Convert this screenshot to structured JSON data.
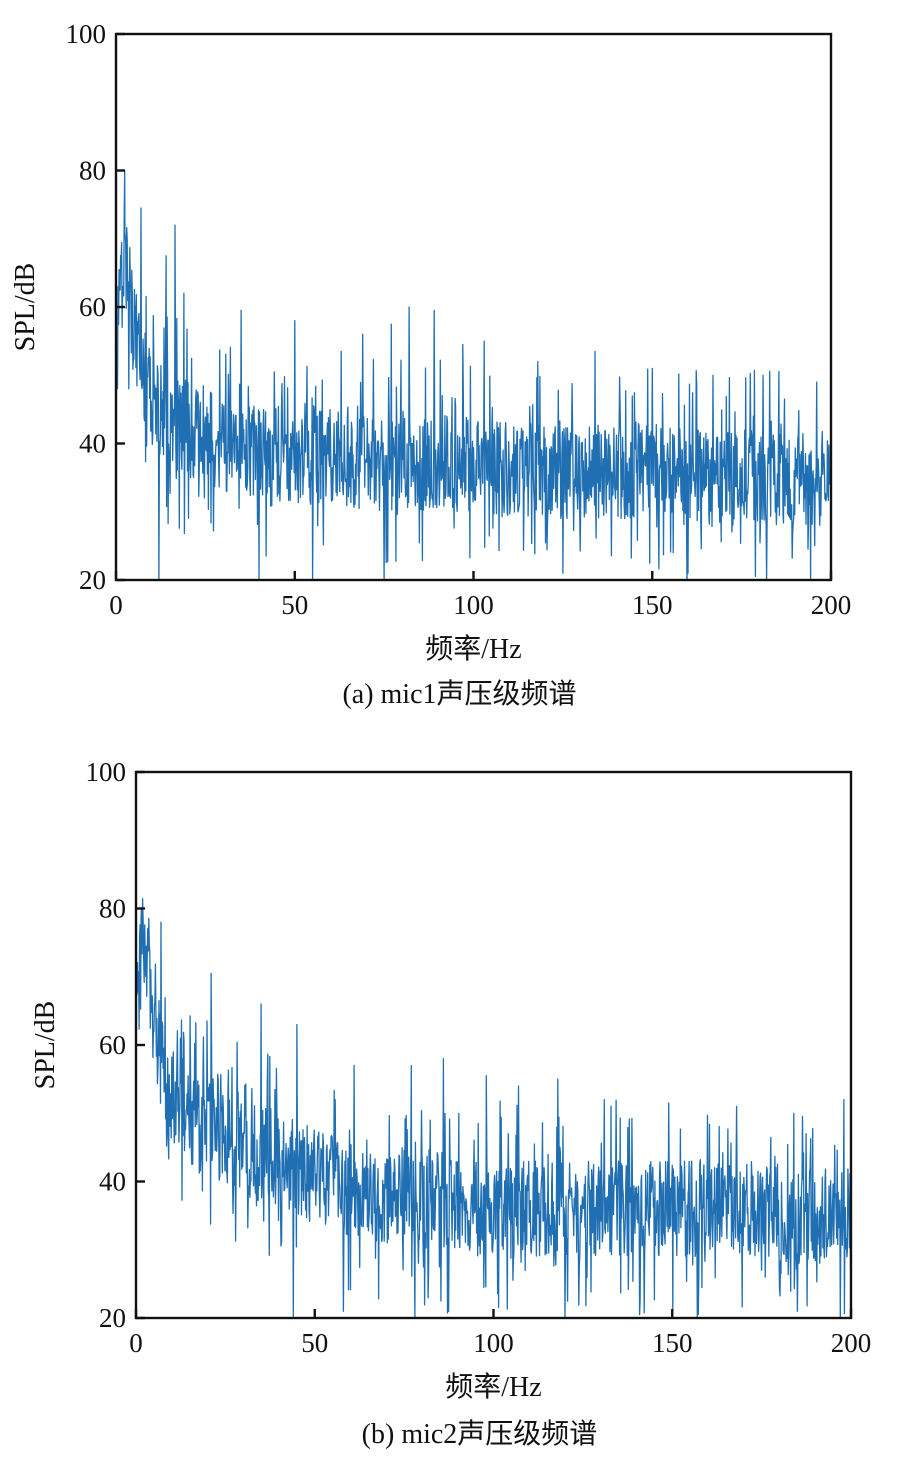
{
  "chart_data": [
    {
      "type": "line",
      "caption": "(a) mic1声压级频谱",
      "xlabel": "频率/Hz",
      "ylabel": "SPL/dB",
      "xlim": [
        0,
        200
      ],
      "ylim": [
        20,
        100
      ],
      "xticks": [
        "0",
        "50",
        "100",
        "150",
        "200"
      ],
      "yticks": [
        "20",
        "40",
        "60",
        "80",
        "100"
      ],
      "grid": false,
      "color": "#1f6fb2",
      "series": [
        {
          "x": [
            0,
            1,
            2,
            3,
            4,
            5,
            6,
            7,
            8,
            9,
            10,
            12,
            14,
            16,
            18,
            20,
            25,
            30,
            35,
            40,
            50,
            60,
            70,
            80,
            90,
            100,
            110,
            120,
            130,
            140,
            150,
            160,
            170,
            180,
            190,
            200
          ],
          "y": [
            48,
            62,
            68,
            66,
            60,
            57,
            55,
            52,
            50,
            48,
            47,
            45,
            44,
            43,
            43,
            42,
            41,
            40,
            39,
            39,
            38,
            38,
            37,
            37,
            37,
            37,
            36,
            36,
            36,
            36,
            36,
            35,
            35,
            35,
            35,
            35
          ]
        }
      ],
      "annotations": {
        "peaks": [
          {
            "x": 2.5,
            "y": 71
          },
          {
            "x": 7,
            "y": 74.5
          },
          {
            "x": 14,
            "y": 67.5
          },
          {
            "x": 16.5,
            "y": 72
          },
          {
            "x": 19,
            "y": 62
          },
          {
            "x": 35,
            "y": 59.5
          },
          {
            "x": 50,
            "y": 58
          },
          {
            "x": 63,
            "y": 53.5
          },
          {
            "x": 69,
            "y": 56
          },
          {
            "x": 77,
            "y": 57.5
          },
          {
            "x": 82,
            "y": 60
          },
          {
            "x": 89,
            "y": 59.5
          },
          {
            "x": 97,
            "y": 54.5
          },
          {
            "x": 103,
            "y": 55
          },
          {
            "x": 118,
            "y": 52
          },
          {
            "x": 134,
            "y": 53.5
          },
          {
            "x": 150,
            "y": 51
          },
          {
            "x": 167,
            "y": 50
          },
          {
            "x": 181,
            "y": 50
          },
          {
            "x": 196,
            "y": 49
          }
        ],
        "dips": [
          {
            "x": 12,
            "y": 20
          },
          {
            "x": 40,
            "y": 20
          },
          {
            "x": 55,
            "y": 20
          },
          {
            "x": 75,
            "y": 20
          },
          {
            "x": 125,
            "y": 21
          },
          {
            "x": 160,
            "y": 21
          },
          {
            "x": 182,
            "y": 20
          }
        ]
      }
    },
    {
      "type": "line",
      "caption": "(b) mic2声压级频谱",
      "xlabel": "频率/Hz",
      "ylabel": "SPL/dB",
      "xlim": [
        0,
        200
      ],
      "ylim": [
        20,
        100
      ],
      "xticks": [
        "0",
        "50",
        "100",
        "150",
        "200"
      ],
      "yticks": [
        "20",
        "40",
        "60",
        "80",
        "100"
      ],
      "grid": false,
      "color": "#1f6fb2",
      "series": [
        {
          "x": [
            0,
            1,
            2,
            3,
            4,
            5,
            6,
            7,
            8,
            9,
            10,
            12,
            14,
            16,
            18,
            20,
            25,
            30,
            35,
            40,
            50,
            60,
            70,
            80,
            90,
            100,
            110,
            120,
            130,
            140,
            150,
            160,
            170,
            180,
            190,
            200
          ],
          "y": [
            65,
            76,
            75,
            72,
            68,
            64,
            61,
            58,
            56,
            54,
            53,
            51,
            50,
            49,
            48,
            48,
            46,
            45,
            44,
            43,
            41,
            39,
            37,
            37,
            36,
            36,
            36,
            36,
            36,
            36,
            36,
            36,
            36,
            35,
            35,
            35
          ]
        }
      ],
      "annotations": {
        "peaks": [
          {
            "x": 1.5,
            "y": 80
          },
          {
            "x": 7,
            "y": 78
          },
          {
            "x": 21,
            "y": 70.5
          },
          {
            "x": 35,
            "y": 66
          },
          {
            "x": 45,
            "y": 63
          },
          {
            "x": 61,
            "y": 57
          },
          {
            "x": 77,
            "y": 57
          },
          {
            "x": 86,
            "y": 58
          },
          {
            "x": 98,
            "y": 55.5
          },
          {
            "x": 107,
            "y": 54
          },
          {
            "x": 118,
            "y": 55
          },
          {
            "x": 131,
            "y": 52
          },
          {
            "x": 149,
            "y": 51.5
          },
          {
            "x": 168,
            "y": 51
          },
          {
            "x": 184,
            "y": 50
          },
          {
            "x": 198,
            "y": 52
          }
        ],
        "dips": [
          {
            "x": 44,
            "y": 20
          },
          {
            "x": 58,
            "y": 21
          },
          {
            "x": 78,
            "y": 20
          },
          {
            "x": 120,
            "y": 20
          },
          {
            "x": 157,
            "y": 20
          },
          {
            "x": 185,
            "y": 21
          },
          {
            "x": 197,
            "y": 20
          }
        ]
      }
    }
  ]
}
